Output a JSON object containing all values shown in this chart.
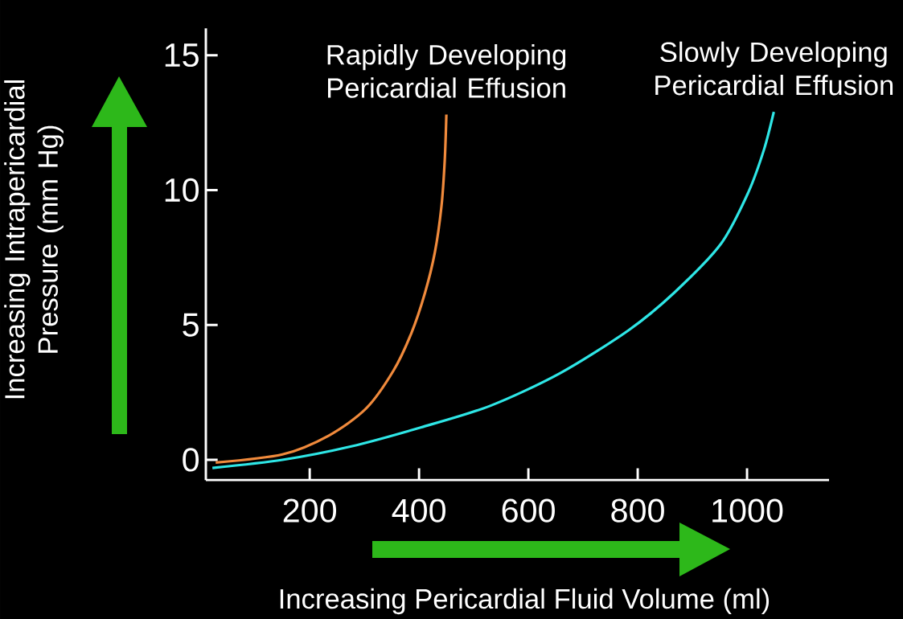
{
  "chart_data": {
    "type": "line",
    "xlabel": "Increasing Pericardial Fluid Volume (ml)",
    "ylabel": "Increasing Intrapericardial Pressure (mm Hg)",
    "series": [
      {
        "name": "Rapidly Developing Pericardial Effusion",
        "color": "#f08a3c",
        "x": [
          28,
          150,
          235,
          303,
          353,
          386,
          411,
          429,
          441,
          447,
          450
        ],
        "values": [
          -0.1,
          0.2,
          0.9,
          1.9,
          3.3,
          4.7,
          6.2,
          7.7,
          9.4,
          11.1,
          12.8
        ]
      },
      {
        "name": "Slowly Developing Pericardial Effusion",
        "color": "#2ee6e6",
        "x": [
          22,
          150,
          276,
          403,
          530,
          657,
          783,
          867,
          952,
          1002,
          1031,
          1049
        ],
        "values": [
          -0.3,
          0.0,
          0.5,
          1.2,
          2.0,
          3.2,
          4.8,
          6.2,
          8.0,
          9.9,
          11.5,
          12.9
        ]
      }
    ],
    "xlim": [
      10,
      1150
    ],
    "ylim": [
      -0.75,
      16
    ],
    "xticks": [
      200,
      400,
      600,
      800,
      1000
    ],
    "yticks": [
      0,
      5,
      10,
      15
    ],
    "grid": false,
    "legend": false,
    "marker": "none",
    "line_style": "solid"
  }
}
